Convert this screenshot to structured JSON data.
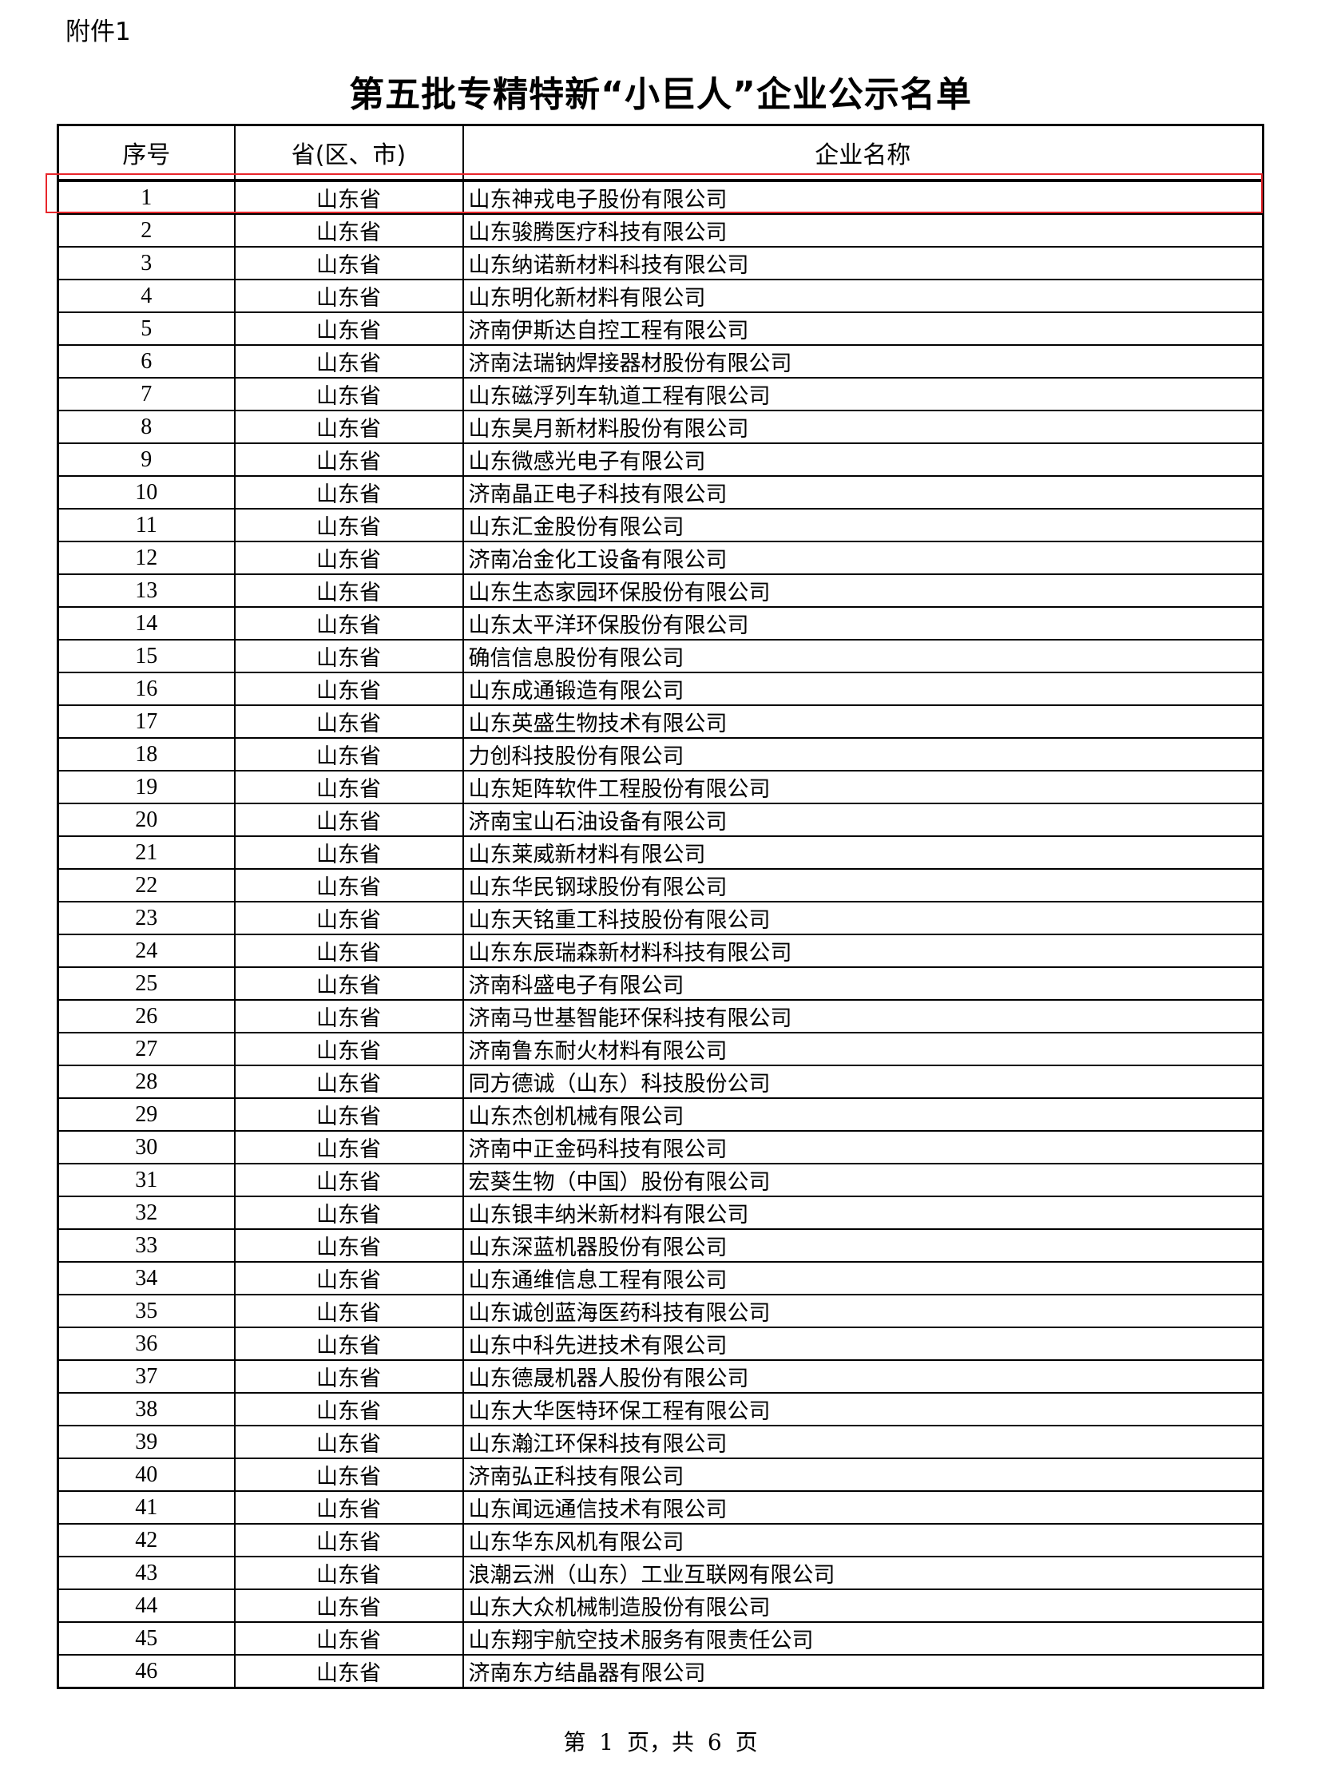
{
  "attachment_label": "附件1",
  "title": "第五批专精特新“小巨人”企业公示名单",
  "table": {
    "headers": [
      "序号",
      "省(区、市)",
      "企业名称"
    ],
    "highlight_color": "#e8262b",
    "highlighted_row": 1,
    "rows": [
      [
        "1",
        "山东省",
        "山东神戎电子股份有限公司"
      ],
      [
        "2",
        "山东省",
        "山东骏腾医疗科技有限公司"
      ],
      [
        "3",
        "山东省",
        "山东纳诺新材料科技有限公司"
      ],
      [
        "4",
        "山东省",
        "山东明化新材料有限公司"
      ],
      [
        "5",
        "山东省",
        "济南伊斯达自控工程有限公司"
      ],
      [
        "6",
        "山东省",
        "济南法瑞钠焊接器材股份有限公司"
      ],
      [
        "7",
        "山东省",
        "山东磁浮列车轨道工程有限公司"
      ],
      [
        "8",
        "山东省",
        "山东昊月新材料股份有限公司"
      ],
      [
        "9",
        "山东省",
        "山东微感光电子有限公司"
      ],
      [
        "10",
        "山东省",
        "济南晶正电子科技有限公司"
      ],
      [
        "11",
        "山东省",
        "山东汇金股份有限公司"
      ],
      [
        "12",
        "山东省",
        "济南冶金化工设备有限公司"
      ],
      [
        "13",
        "山东省",
        "山东生态家园环保股份有限公司"
      ],
      [
        "14",
        "山东省",
        "山东太平洋环保股份有限公司"
      ],
      [
        "15",
        "山东省",
        "确信信息股份有限公司"
      ],
      [
        "16",
        "山东省",
        "山东成通锻造有限公司"
      ],
      [
        "17",
        "山东省",
        "山东英盛生物技术有限公司"
      ],
      [
        "18",
        "山东省",
        "力创科技股份有限公司"
      ],
      [
        "19",
        "山东省",
        "山东矩阵软件工程股份有限公司"
      ],
      [
        "20",
        "山东省",
        "济南宝山石油设备有限公司"
      ],
      [
        "21",
        "山东省",
        "山东莱威新材料有限公司"
      ],
      [
        "22",
        "山东省",
        "山东华民钢球股份有限公司"
      ],
      [
        "23",
        "山东省",
        "山东天铭重工科技股份有限公司"
      ],
      [
        "24",
        "山东省",
        "山东东辰瑞森新材料科技有限公司"
      ],
      [
        "25",
        "山东省",
        "济南科盛电子有限公司"
      ],
      [
        "26",
        "山东省",
        "济南马世基智能环保科技有限公司"
      ],
      [
        "27",
        "山东省",
        "济南鲁东耐火材料有限公司"
      ],
      [
        "28",
        "山东省",
        "同方德诚（山东）科技股份公司"
      ],
      [
        "29",
        "山东省",
        "山东杰创机械有限公司"
      ],
      [
        "30",
        "山东省",
        "济南中正金码科技有限公司"
      ],
      [
        "31",
        "山东省",
        "宏葵生物（中国）股份有限公司"
      ],
      [
        "32",
        "山东省",
        "山东银丰纳米新材料有限公司"
      ],
      [
        "33",
        "山东省",
        "山东深蓝机器股份有限公司"
      ],
      [
        "34",
        "山东省",
        "山东通维信息工程有限公司"
      ],
      [
        "35",
        "山东省",
        "山东诚创蓝海医药科技有限公司"
      ],
      [
        "36",
        "山东省",
        "山东中科先进技术有限公司"
      ],
      [
        "37",
        "山东省",
        "山东德晟机器人股份有限公司"
      ],
      [
        "38",
        "山东省",
        "山东大华医特环保工程有限公司"
      ],
      [
        "39",
        "山东省",
        "山东瀚江环保科技有限公司"
      ],
      [
        "40",
        "山东省",
        "济南弘正科技有限公司"
      ],
      [
        "41",
        "山东省",
        "山东闻远通信技术有限公司"
      ],
      [
        "42",
        "山东省",
        "山东华东风机有限公司"
      ],
      [
        "43",
        "山东省",
        "浪潮云洲（山东）工业互联网有限公司"
      ],
      [
        "44",
        "山东省",
        "山东大众机械制造股份有限公司"
      ],
      [
        "45",
        "山东省",
        "山东翔宇航空技术服务有限责任公司"
      ],
      [
        "46",
        "山东省",
        "济南东方结晶器有限公司"
      ]
    ]
  },
  "footer": "第 1 页，共 6 页"
}
